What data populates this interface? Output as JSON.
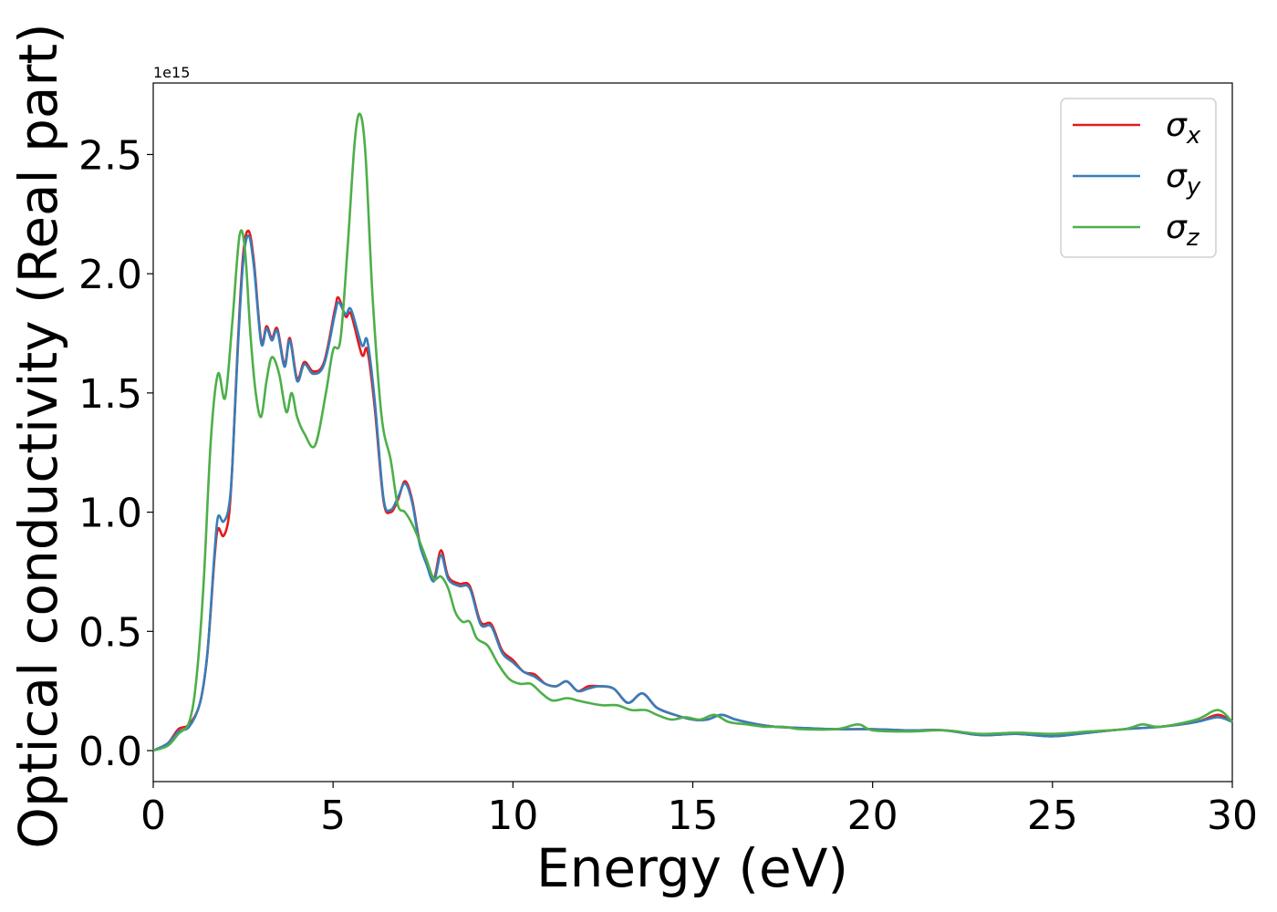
{
  "chart_data": {
    "type": "line",
    "title": "",
    "xlabel": "Energy (eV)",
    "ylabel": "Optical conductivity (Real part)",
    "y_offset_label": "1e15",
    "xlim": [
      0,
      30
    ],
    "ylim": [
      -0.13,
      2.8
    ],
    "x_ticks": [
      0,
      5,
      10,
      15,
      20,
      25,
      30
    ],
    "x_tick_labels": [
      "0",
      "5",
      "10",
      "15",
      "20",
      "25",
      "30"
    ],
    "y_ticks": [
      0.0,
      0.5,
      1.0,
      1.5,
      2.0,
      2.5
    ],
    "y_tick_labels": [
      "0.0",
      "0.5",
      "1.0",
      "1.5",
      "2.0",
      "2.5"
    ],
    "grid": false,
    "legend_position": "top-right",
    "series": [
      {
        "name": "x",
        "color": "#e41a1c",
        "points": [
          [
            0,
            0
          ],
          [
            0.4,
            0.03
          ],
          [
            0.7,
            0.09
          ],
          [
            1.0,
            0.11
          ],
          [
            1.3,
            0.2
          ],
          [
            1.5,
            0.4
          ],
          [
            1.7,
            0.8
          ],
          [
            1.8,
            0.93
          ],
          [
            1.95,
            0.9
          ],
          [
            2.1,
            0.98
          ],
          [
            2.2,
            1.2
          ],
          [
            2.35,
            1.7
          ],
          [
            2.5,
            2.08
          ],
          [
            2.65,
            2.18
          ],
          [
            2.8,
            2.05
          ],
          [
            3.0,
            1.72
          ],
          [
            3.15,
            1.78
          ],
          [
            3.3,
            1.73
          ],
          [
            3.45,
            1.77
          ],
          [
            3.65,
            1.62
          ],
          [
            3.8,
            1.73
          ],
          [
            4.0,
            1.56
          ],
          [
            4.2,
            1.63
          ],
          [
            4.45,
            1.59
          ],
          [
            4.75,
            1.63
          ],
          [
            5.05,
            1.85
          ],
          [
            5.15,
            1.9
          ],
          [
            5.35,
            1.82
          ],
          [
            5.5,
            1.83
          ],
          [
            5.8,
            1.66
          ],
          [
            5.95,
            1.68
          ],
          [
            6.15,
            1.45
          ],
          [
            6.4,
            1.05
          ],
          [
            6.6,
            1.0
          ],
          [
            6.8,
            1.05
          ],
          [
            7.0,
            1.13
          ],
          [
            7.2,
            1.05
          ],
          [
            7.4,
            0.88
          ],
          [
            7.6,
            0.79
          ],
          [
            7.8,
            0.72
          ],
          [
            8.0,
            0.84
          ],
          [
            8.2,
            0.73
          ],
          [
            8.5,
            0.7
          ],
          [
            8.8,
            0.69
          ],
          [
            9.1,
            0.54
          ],
          [
            9.4,
            0.53
          ],
          [
            9.7,
            0.42
          ],
          [
            10.0,
            0.38
          ],
          [
            10.3,
            0.33
          ],
          [
            10.6,
            0.32
          ],
          [
            10.9,
            0.28
          ],
          [
            11.2,
            0.27
          ],
          [
            11.5,
            0.29
          ],
          [
            11.8,
            0.25
          ],
          [
            12.1,
            0.27
          ],
          [
            12.4,
            0.27
          ],
          [
            12.8,
            0.26
          ],
          [
            13.2,
            0.2
          ],
          [
            13.6,
            0.24
          ],
          [
            14.0,
            0.18
          ],
          [
            14.5,
            0.15
          ],
          [
            15.0,
            0.13
          ],
          [
            15.4,
            0.13
          ],
          [
            15.8,
            0.15
          ],
          [
            16.2,
            0.13
          ],
          [
            16.8,
            0.11
          ],
          [
            17.3,
            0.1
          ],
          [
            18.0,
            0.095
          ],
          [
            19.0,
            0.09
          ],
          [
            20.0,
            0.09
          ],
          [
            21.0,
            0.085
          ],
          [
            22.0,
            0.085
          ],
          [
            23.0,
            0.065
          ],
          [
            24.0,
            0.07
          ],
          [
            25.0,
            0.06
          ],
          [
            26.0,
            0.075
          ],
          [
            27.0,
            0.09
          ],
          [
            28.0,
            0.1
          ],
          [
            29.0,
            0.12
          ],
          [
            29.6,
            0.15
          ],
          [
            30.0,
            0.12
          ]
        ]
      },
      {
        "name": "y",
        "color": "#377eb8",
        "points": [
          [
            0,
            0
          ],
          [
            0.4,
            0.03
          ],
          [
            0.7,
            0.08
          ],
          [
            1.0,
            0.1
          ],
          [
            1.3,
            0.2
          ],
          [
            1.5,
            0.4
          ],
          [
            1.7,
            0.82
          ],
          [
            1.8,
            0.98
          ],
          [
            1.95,
            0.96
          ],
          [
            2.1,
            1.02
          ],
          [
            2.2,
            1.2
          ],
          [
            2.35,
            1.68
          ],
          [
            2.5,
            2.05
          ],
          [
            2.65,
            2.16
          ],
          [
            2.8,
            2.03
          ],
          [
            3.0,
            1.71
          ],
          [
            3.15,
            1.77
          ],
          [
            3.3,
            1.72
          ],
          [
            3.45,
            1.76
          ],
          [
            3.65,
            1.61
          ],
          [
            3.8,
            1.72
          ],
          [
            4.0,
            1.55
          ],
          [
            4.2,
            1.62
          ],
          [
            4.45,
            1.58
          ],
          [
            4.75,
            1.62
          ],
          [
            5.05,
            1.83
          ],
          [
            5.15,
            1.88
          ],
          [
            5.35,
            1.83
          ],
          [
            5.5,
            1.85
          ],
          [
            5.8,
            1.7
          ],
          [
            5.95,
            1.72
          ],
          [
            6.15,
            1.48
          ],
          [
            6.4,
            1.06
          ],
          [
            6.6,
            1.01
          ],
          [
            6.8,
            1.06
          ],
          [
            7.0,
            1.12
          ],
          [
            7.2,
            1.04
          ],
          [
            7.4,
            0.87
          ],
          [
            7.6,
            0.78
          ],
          [
            7.8,
            0.71
          ],
          [
            8.0,
            0.82
          ],
          [
            8.2,
            0.72
          ],
          [
            8.5,
            0.69
          ],
          [
            8.8,
            0.68
          ],
          [
            9.1,
            0.53
          ],
          [
            9.4,
            0.52
          ],
          [
            9.7,
            0.41
          ],
          [
            10.0,
            0.37
          ],
          [
            10.3,
            0.33
          ],
          [
            10.6,
            0.31
          ],
          [
            10.9,
            0.28
          ],
          [
            11.2,
            0.27
          ],
          [
            11.5,
            0.29
          ],
          [
            11.8,
            0.25
          ],
          [
            12.1,
            0.26
          ],
          [
            12.4,
            0.27
          ],
          [
            12.8,
            0.26
          ],
          [
            13.2,
            0.2
          ],
          [
            13.6,
            0.24
          ],
          [
            14.0,
            0.18
          ],
          [
            14.5,
            0.15
          ],
          [
            15.0,
            0.13
          ],
          [
            15.4,
            0.13
          ],
          [
            15.8,
            0.15
          ],
          [
            16.2,
            0.13
          ],
          [
            16.8,
            0.11
          ],
          [
            17.3,
            0.1
          ],
          [
            18.0,
            0.095
          ],
          [
            19.0,
            0.09
          ],
          [
            20.0,
            0.09
          ],
          [
            21.0,
            0.085
          ],
          [
            22.0,
            0.085
          ],
          [
            23.0,
            0.065
          ],
          [
            24.0,
            0.07
          ],
          [
            25.0,
            0.06
          ],
          [
            26.0,
            0.075
          ],
          [
            27.0,
            0.09
          ],
          [
            28.0,
            0.1
          ],
          [
            29.0,
            0.12
          ],
          [
            29.6,
            0.14
          ],
          [
            30.0,
            0.12
          ]
        ]
      },
      {
        "name": "z",
        "color": "#4daf4a",
        "points": [
          [
            0,
            0
          ],
          [
            0.4,
            0.02
          ],
          [
            0.7,
            0.07
          ],
          [
            1.0,
            0.12
          ],
          [
            1.2,
            0.3
          ],
          [
            1.4,
            0.7
          ],
          [
            1.6,
            1.3
          ],
          [
            1.8,
            1.58
          ],
          [
            2.0,
            1.48
          ],
          [
            2.2,
            1.8
          ],
          [
            2.4,
            2.16
          ],
          [
            2.55,
            2.1
          ],
          [
            2.7,
            1.75
          ],
          [
            2.85,
            1.5
          ],
          [
            3.0,
            1.4
          ],
          [
            3.15,
            1.55
          ],
          [
            3.3,
            1.65
          ],
          [
            3.5,
            1.58
          ],
          [
            3.7,
            1.42
          ],
          [
            3.85,
            1.5
          ],
          [
            4.0,
            1.4
          ],
          [
            4.2,
            1.33
          ],
          [
            4.5,
            1.28
          ],
          [
            4.8,
            1.5
          ],
          [
            5.0,
            1.68
          ],
          [
            5.2,
            1.72
          ],
          [
            5.4,
            2.1
          ],
          [
            5.6,
            2.55
          ],
          [
            5.75,
            2.67
          ],
          [
            5.9,
            2.5
          ],
          [
            6.1,
            1.9
          ],
          [
            6.35,
            1.4
          ],
          [
            6.6,
            1.22
          ],
          [
            6.8,
            1.03
          ],
          [
            7.0,
            1.0
          ],
          [
            7.2,
            0.95
          ],
          [
            7.4,
            0.88
          ],
          [
            7.6,
            0.8
          ],
          [
            7.8,
            0.72
          ],
          [
            8.0,
            0.73
          ],
          [
            8.2,
            0.68
          ],
          [
            8.4,
            0.58
          ],
          [
            8.6,
            0.54
          ],
          [
            8.8,
            0.54
          ],
          [
            9.0,
            0.47
          ],
          [
            9.3,
            0.44
          ],
          [
            9.6,
            0.36
          ],
          [
            9.9,
            0.3
          ],
          [
            10.2,
            0.28
          ],
          [
            10.5,
            0.28
          ],
          [
            10.8,
            0.24
          ],
          [
            11.1,
            0.21
          ],
          [
            11.5,
            0.22
          ],
          [
            11.8,
            0.21
          ],
          [
            12.1,
            0.2
          ],
          [
            12.5,
            0.19
          ],
          [
            12.9,
            0.19
          ],
          [
            13.3,
            0.17
          ],
          [
            13.7,
            0.17
          ],
          [
            14.0,
            0.15
          ],
          [
            14.4,
            0.13
          ],
          [
            14.8,
            0.14
          ],
          [
            15.2,
            0.13
          ],
          [
            15.6,
            0.15
          ],
          [
            16.0,
            0.12
          ],
          [
            16.5,
            0.11
          ],
          [
            17.0,
            0.1
          ],
          [
            17.5,
            0.1
          ],
          [
            18.0,
            0.09
          ],
          [
            19.0,
            0.09
          ],
          [
            19.6,
            0.11
          ],
          [
            20.0,
            0.085
          ],
          [
            21.0,
            0.08
          ],
          [
            22.0,
            0.085
          ],
          [
            23.0,
            0.07
          ],
          [
            24.0,
            0.075
          ],
          [
            25.0,
            0.07
          ],
          [
            26.0,
            0.08
          ],
          [
            27.0,
            0.09
          ],
          [
            27.5,
            0.11
          ],
          [
            28.0,
            0.1
          ],
          [
            29.0,
            0.13
          ],
          [
            29.6,
            0.17
          ],
          [
            30.0,
            0.12
          ]
        ]
      }
    ]
  }
}
